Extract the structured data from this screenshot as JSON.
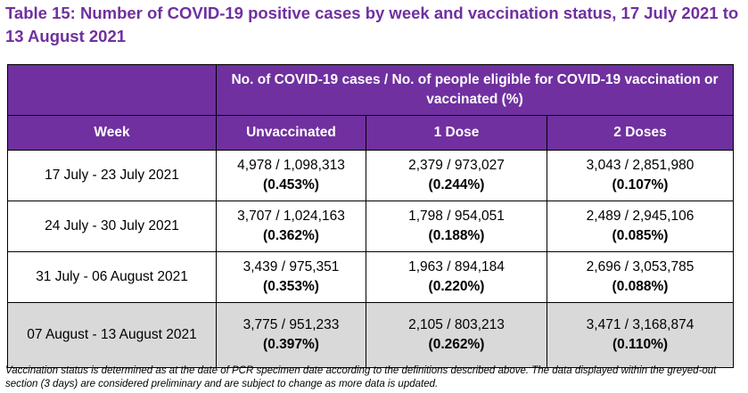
{
  "title": "Table 15: Number of COVID-19 positive cases by week and vaccination status, 17 July 2021 to 13 August 2021",
  "table": {
    "group_header": "No. of COVID-19 cases / No. of people eligible for COVID-19 vaccination or vaccinated (%)",
    "columns": {
      "week": "Week",
      "unvaccinated": "Unvaccinated",
      "one_dose": "1 Dose",
      "two_doses": "2 Doses"
    },
    "rows": [
      {
        "week": "17 July - 23 July 2021",
        "unvaccinated": {
          "count": "4,978 / 1,098,313",
          "pct": "(0.453%)"
        },
        "one_dose": {
          "count": "2,379 / 973,027",
          "pct": "(0.244%)"
        },
        "two_doses": {
          "count": "3,043 / 2,851,980",
          "pct": "(0.107%)"
        }
      },
      {
        "week": "24 July - 30 July 2021",
        "unvaccinated": {
          "count": "3,707 / 1,024,163",
          "pct": "(0.362%)"
        },
        "one_dose": {
          "count": "1,798 / 954,051",
          "pct": "(0.188%)"
        },
        "two_doses": {
          "count": "2,489 / 2,945,106",
          "pct": "(0.085%)"
        }
      },
      {
        "week": "31 July - 06 August 2021",
        "unvaccinated": {
          "count": "3,439 / 975,351",
          "pct": "(0.353%)"
        },
        "one_dose": {
          "count": "1,963 / 894,184",
          "pct": "(0.220%)"
        },
        "two_doses": {
          "count": "2,696 / 3,053,785",
          "pct": "(0.088%)"
        }
      },
      {
        "week": "07 August - 13 August 2021",
        "unvaccinated": {
          "count": "3,775 / 951,233",
          "pct": "(0.397%)"
        },
        "one_dose": {
          "count": "2,105 / 803,213",
          "pct": "(0.262%)"
        },
        "two_doses": {
          "count": "3,471 / 3,168,874",
          "pct": "(0.110%)"
        }
      }
    ]
  },
  "footnote": "Vaccination status is determined as at the date of PCR specimen date according to the definitions described above. The data displayed within the greyed-out section (3 days) are considered preliminary and are subject to change as more data is updated.",
  "colors": {
    "header_purple": "#7030a0",
    "grey_row": "#d9d9d9"
  }
}
